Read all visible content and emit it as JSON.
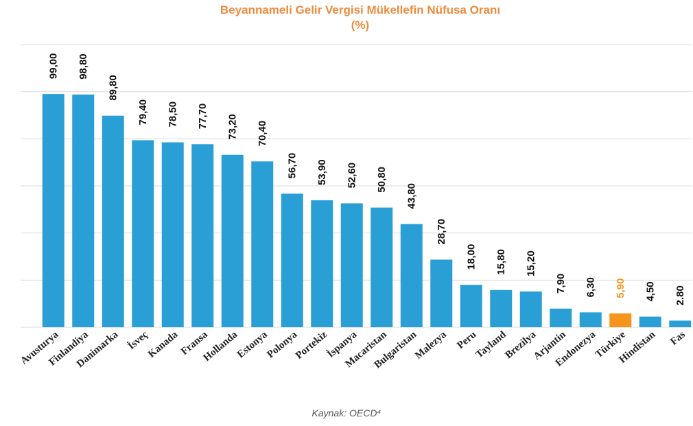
{
  "chart_data": {
    "type": "bar",
    "title": "Beyannameli Gelir Vergisi Mükellefin Nüfusa Oranı (%)",
    "source": "Kaynak: OECD⁴",
    "categories": [
      "Avusturya",
      "Finlandiya",
      "Danimarka",
      "İsveç",
      "Kanada",
      "Fransa",
      "Hollanda",
      "Estonya",
      "Polonya",
      "Portekiz",
      "İspanya",
      "Macaristan",
      "Bulgaristan",
      "Malezya",
      "Peru",
      "Tayland",
      "Brezilya",
      "Arjantin",
      "Endonezya",
      "Türkiye",
      "Hindistan",
      "Fas"
    ],
    "values": [
      99.0,
      98.8,
      89.8,
      79.4,
      78.5,
      77.7,
      73.2,
      70.4,
      56.7,
      53.9,
      52.6,
      50.8,
      43.8,
      28.7,
      18.0,
      15.8,
      15.2,
      7.9,
      6.3,
      5.9,
      4.5,
      2.8
    ],
    "value_labels": [
      "99,00",
      "98,80",
      "89,80",
      "79,40",
      "78,50",
      "77,70",
      "73,20",
      "70,40",
      "56,70",
      "53,90",
      "52,60",
      "50,80",
      "43,80",
      "28,70",
      "18,00",
      "15,80",
      "15,20",
      "7,90",
      "6,30",
      "5,90",
      "4,50",
      "2.80"
    ],
    "colors": [
      "#2a9fd6",
      "#2a9fd6",
      "#2a9fd6",
      "#2a9fd6",
      "#2a9fd6",
      "#2a9fd6",
      "#2a9fd6",
      "#2a9fd6",
      "#2a9fd6",
      "#2a9fd6",
      "#2a9fd6",
      "#2a9fd6",
      "#2a9fd6",
      "#2a9fd6",
      "#2a9fd6",
      "#2a9fd6",
      "#2a9fd6",
      "#2a9fd6",
      "#2a9fd6",
      "#f7941d",
      "#2a9fd6",
      "#2a9fd6"
    ],
    "ylim": [
      0,
      120
    ],
    "yticks": [
      0,
      20,
      40,
      60,
      80,
      100,
      120
    ],
    "grid": true
  }
}
